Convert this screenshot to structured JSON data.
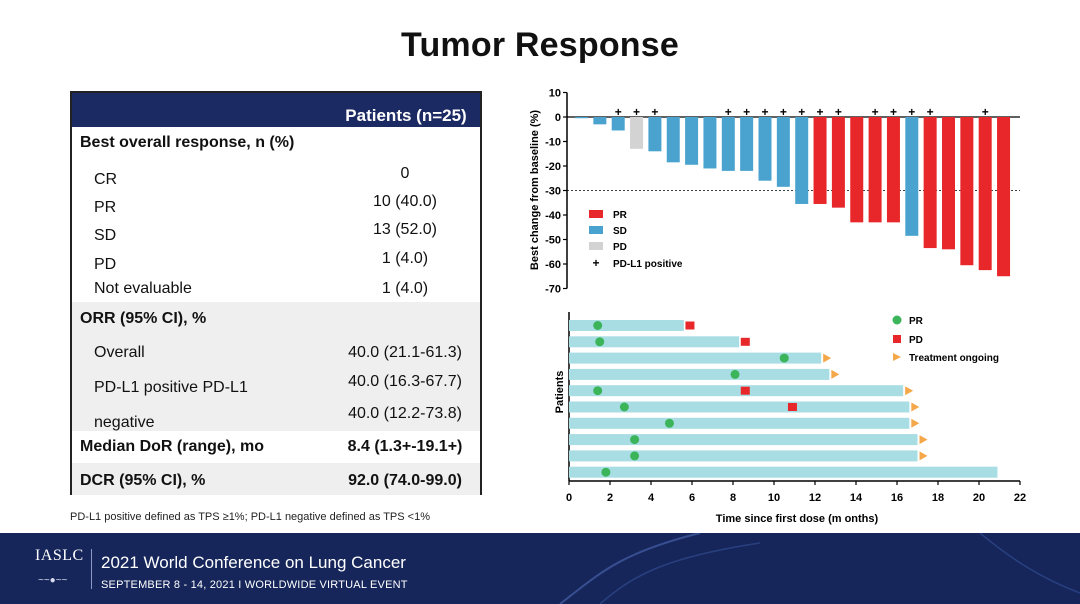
{
  "title": "Tumor Response",
  "table": {
    "column_header": "Patients (n=25)",
    "rows": [
      {
        "label": "Best overall response, n (%)",
        "value": "",
        "bold": true,
        "indent": false,
        "shaded": false
      },
      {
        "label": "CR",
        "value": "0",
        "bold": false,
        "indent": true,
        "shaded": false
      },
      {
        "label": "PR",
        "value": "10 (40.0)",
        "bold": false,
        "indent": true,
        "shaded": false
      },
      {
        "label": "SD",
        "value": "13 (52.0)",
        "bold": false,
        "indent": true,
        "shaded": false
      },
      {
        "label": "PD",
        "value": "1 (4.0)",
        "bold": false,
        "indent": true,
        "shaded": false
      },
      {
        "label": "Not evaluable",
        "value": "1 (4.0)",
        "bold": false,
        "indent": true,
        "shaded": false
      },
      {
        "label": "ORR (95% CI), %",
        "value": "",
        "bold": true,
        "indent": false,
        "shaded": true
      },
      {
        "label": "Overall",
        "value": "40.0 (21.1-61.3)",
        "bold": false,
        "indent": true,
        "shaded": true
      },
      {
        "label": "PD-L1 positive PD-L1",
        "value": "40.0 (16.3-67.7)",
        "bold": false,
        "indent": true,
        "shaded": true
      },
      {
        "label": "negative",
        "value": "40.0 (12.2-73.8)",
        "bold": false,
        "indent": true,
        "shaded": true
      },
      {
        "label": "Median DoR (range), mo",
        "value": "8.4 (1.3+-19.1+)",
        "bold": true,
        "indent": false,
        "shaded": false
      },
      {
        "label": "DCR (95% CI), %",
        "value": "92.0 (74.0-99.0)",
        "bold": true,
        "indent": false,
        "shaded": true
      }
    ]
  },
  "footnote": "PD-L1 positive defined as TPS ≥1%; PD-L1 negative defined as TPS <1%",
  "colors": {
    "PR": "#e8272a",
    "SD": "#4aa3cf",
    "PD": "#d3d3d3",
    "swim": "#a7dde3",
    "pr_dot": "#3cb55a",
    "pd_sq": "#e8272a",
    "ongoing": "#f5a84a",
    "header_bg": "#1c2a63",
    "banner_bg": "#16265a"
  },
  "chart_data": [
    {
      "type": "bar",
      "title": "",
      "ylabel": "Best change from baseline (%)",
      "xlabel": "",
      "ylim": [
        -70,
        10
      ],
      "yticks": [
        "10",
        "0",
        "-10",
        "-20",
        "-30",
        "-40",
        "-50",
        "-60",
        "-70"
      ],
      "threshold": -30,
      "plus_marker": "+",
      "legend": [
        {
          "label": "PR",
          "key": "PR"
        },
        {
          "label": "SD",
          "key": "SD"
        },
        {
          "label": "PD",
          "key": "PD"
        },
        {
          "label": "PD-L1 positive",
          "key": "plus"
        }
      ],
      "bars": [
        {
          "value": -0.5,
          "response": "SD",
          "pdl1_positive": false
        },
        {
          "value": -3,
          "response": "SD",
          "pdl1_positive": false
        },
        {
          "value": -5.5,
          "response": "SD",
          "pdl1_positive": true
        },
        {
          "value": -13,
          "response": "PD",
          "pdl1_positive": true
        },
        {
          "value": -14,
          "response": "SD",
          "pdl1_positive": true
        },
        {
          "value": -18.5,
          "response": "SD",
          "pdl1_positive": false
        },
        {
          "value": -19.5,
          "response": "SD",
          "pdl1_positive": false
        },
        {
          "value": -21,
          "response": "SD",
          "pdl1_positive": false
        },
        {
          "value": -22,
          "response": "SD",
          "pdl1_positive": true
        },
        {
          "value": -22,
          "response": "SD",
          "pdl1_positive": true
        },
        {
          "value": -26,
          "response": "SD",
          "pdl1_positive": true
        },
        {
          "value": -28.5,
          "response": "SD",
          "pdl1_positive": true
        },
        {
          "value": -35.5,
          "response": "SD",
          "pdl1_positive": true
        },
        {
          "value": -35.5,
          "response": "PR",
          "pdl1_positive": true
        },
        {
          "value": -37,
          "response": "PR",
          "pdl1_positive": true
        },
        {
          "value": -43,
          "response": "PR",
          "pdl1_positive": false
        },
        {
          "value": -43,
          "response": "PR",
          "pdl1_positive": true
        },
        {
          "value": -43,
          "response": "PR",
          "pdl1_positive": true
        },
        {
          "value": -48.5,
          "response": "SD",
          "pdl1_positive": true
        },
        {
          "value": -53.5,
          "response": "PR",
          "pdl1_positive": true
        },
        {
          "value": -54,
          "response": "PR",
          "pdl1_positive": false
        },
        {
          "value": -60.5,
          "response": "PR",
          "pdl1_positive": false
        },
        {
          "value": -62.5,
          "response": "PR",
          "pdl1_positive": true
        },
        {
          "value": -65,
          "response": "PR",
          "pdl1_positive": false
        }
      ]
    },
    {
      "type": "swimmer",
      "xlabel": "Time since first dose (m onths)",
      "ylabel": "Patients",
      "xlim": [
        0,
        22
      ],
      "xticks": [
        "0",
        "2",
        "4",
        "6",
        "8",
        "10",
        "12",
        "14",
        "16",
        "18",
        "20",
        "22"
      ],
      "legend": [
        {
          "label": "PR",
          "key": "pr"
        },
        {
          "label": "PD",
          "key": "pd"
        },
        {
          "label": "Treatment ongoing",
          "key": "ongoing"
        }
      ],
      "patients": [
        {
          "duration": 5.6,
          "pr": 1.4,
          "pd": 5.9,
          "ongoing": false
        },
        {
          "duration": 8.3,
          "pr": 1.5,
          "pd": 8.6,
          "ongoing": false
        },
        {
          "duration": 12.3,
          "pr": 10.5,
          "pd": null,
          "ongoing": true
        },
        {
          "duration": 12.7,
          "pr": 8.1,
          "pd": null,
          "ongoing": true
        },
        {
          "duration": 16.3,
          "pr": 1.4,
          "pd": 8.6,
          "ongoing": true
        },
        {
          "duration": 16.6,
          "pr": 2.7,
          "pd": 10.9,
          "ongoing": true
        },
        {
          "duration": 16.6,
          "pr": 4.9,
          "pd": null,
          "ongoing": true
        },
        {
          "duration": 17.0,
          "pr": 3.2,
          "pd": null,
          "ongoing": true
        },
        {
          "duration": 17.0,
          "pr": 3.2,
          "pd": null,
          "ongoing": true
        },
        {
          "duration": 20.9,
          "pr": 1.8,
          "pd": null,
          "ongoing": false
        }
      ]
    }
  ],
  "banner": {
    "logo": "IASLC",
    "conference": "2021 World Conference on Lung Cancer",
    "dates": "SEPTEMBER 8 - 14, 2021 I WORLDWIDE VIRTUAL EVENT"
  }
}
